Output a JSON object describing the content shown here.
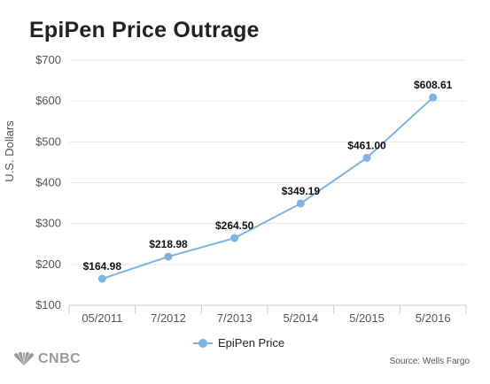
{
  "chart_data": {
    "type": "line",
    "title": "EpiPen Price Outrage",
    "ylabel": "U.S. Dollars",
    "xlabel": "",
    "categories": [
      "05/2011",
      "7/2012",
      "7/2013",
      "5/2014",
      "5/2015",
      "5/2016"
    ],
    "series": [
      {
        "name": "EpiPen Price",
        "values": [
          164.98,
          218.98,
          264.5,
          349.19,
          461.0,
          608.61
        ],
        "labels": [
          "$164.98",
          "$218.98",
          "$264.50",
          "$349.19",
          "$461.00",
          "$608.61"
        ],
        "color": "#7db3e0"
      }
    ],
    "ylim": [
      100,
      700
    ],
    "yticks": [
      100,
      200,
      300,
      400,
      500,
      600,
      700
    ],
    "ytick_labels": [
      "$100",
      "$200",
      "$300",
      "$400",
      "$500",
      "$600",
      "$700"
    ],
    "grid": true,
    "legend": "bottom-center"
  },
  "source": "Source: Wells Fargo",
  "logo": {
    "text": "CNBC",
    "icon": "peacock-icon"
  }
}
